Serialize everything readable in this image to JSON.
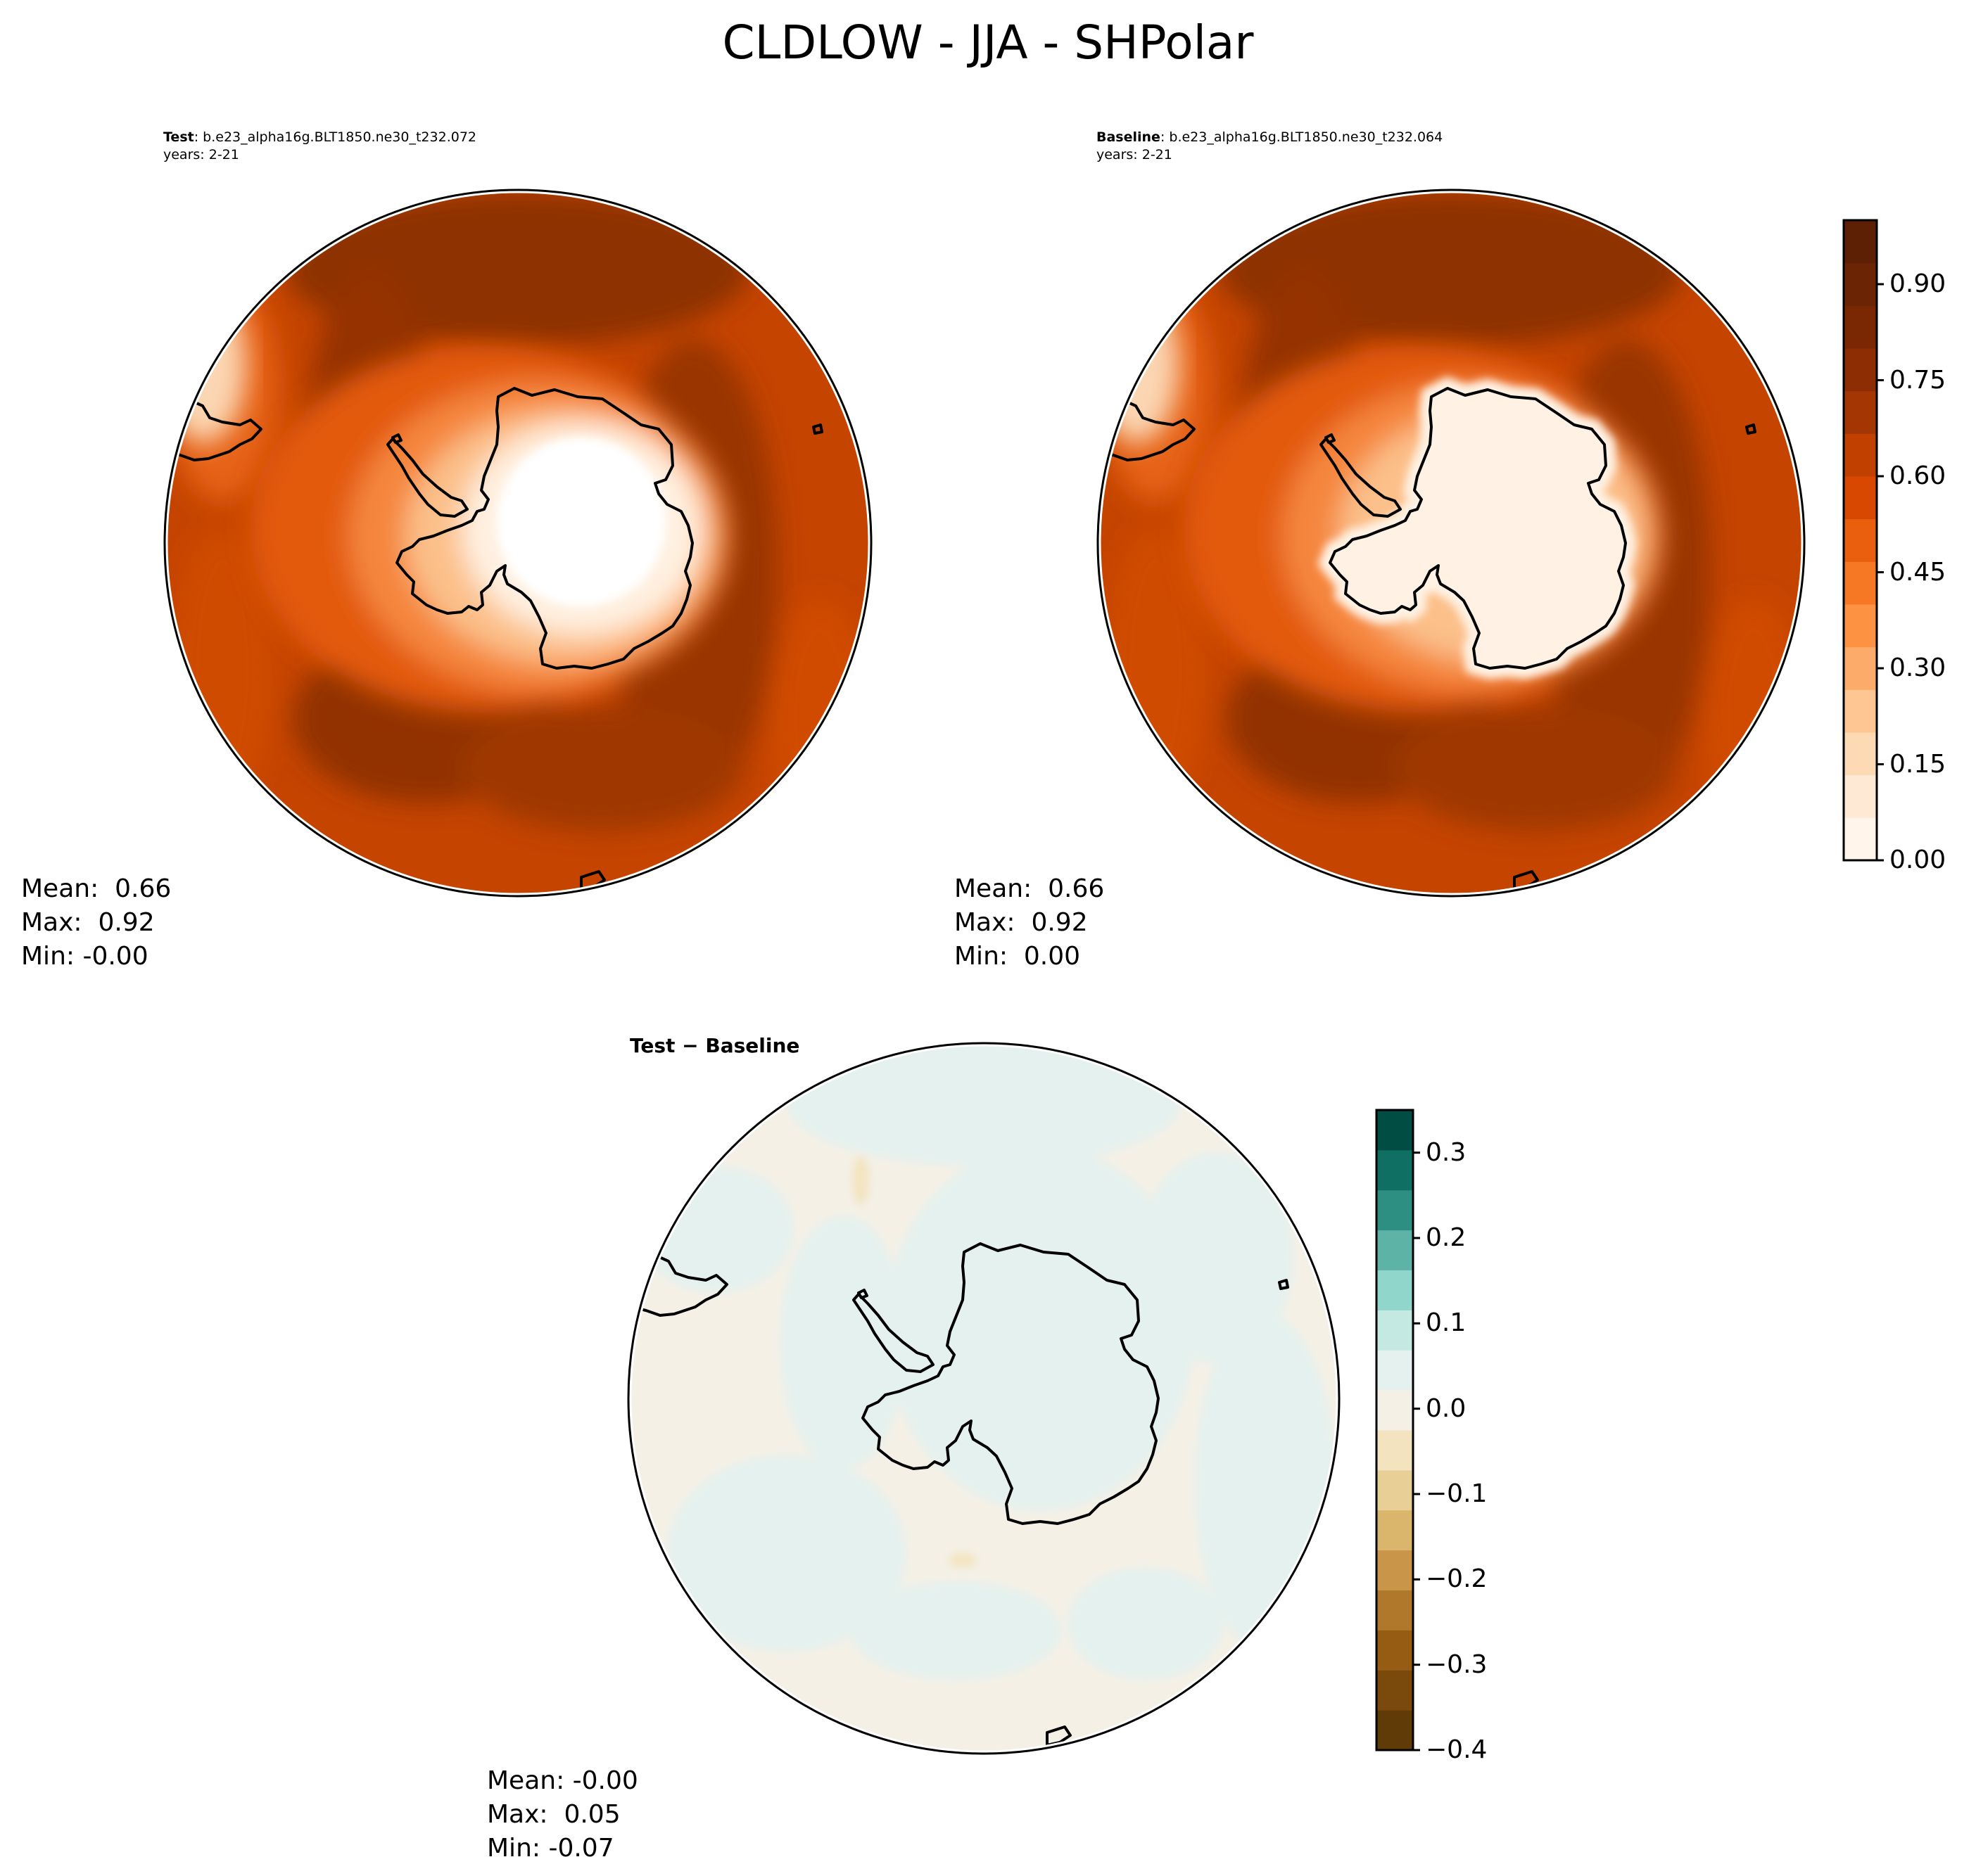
{
  "title": "CLDLOW - JJA - SHPolar",
  "panels": [
    {
      "id": "test",
      "label_bold": "Test",
      "label_rest": ": b.e23_alpha16g.BLT1850.ne30_t232.072",
      "years": "years: 2-21",
      "stats": {
        "mean": "Mean:  0.66",
        "max": "Max:  0.92",
        "min": "Min: -0.00"
      }
    },
    {
      "id": "baseline",
      "label_bold": "Baseline",
      "label_rest": ": b.e23_alpha16g.BLT1850.ne30_t232.064",
      "years": "years: 2-21",
      "stats": {
        "mean": "Mean:  0.66",
        "max": "Max:  0.92",
        "min": "Min:  0.00"
      }
    },
    {
      "id": "diff",
      "label_bold": "Test − Baseline",
      "label_rest": "",
      "years": "",
      "stats": {
        "mean": "Mean: -0.00",
        "max": "Max:  0.05",
        "min": "Min: -0.07"
      }
    }
  ],
  "colorbars": {
    "main": {
      "ticks": [
        "0.00",
        "0.15",
        "0.30",
        "0.45",
        "0.60",
        "0.75",
        "0.90"
      ],
      "tick_values": [
        0.0,
        0.15,
        0.3,
        0.45,
        0.6,
        0.75,
        0.9
      ],
      "range": [
        0.0,
        1.0
      ],
      "colors": [
        "#fff5eb",
        "#fee9d4",
        "#fdd9b4",
        "#fdc692",
        "#fdab6b",
        "#fd9243",
        "#f67824",
        "#e95f0e",
        "#d94801",
        "#c14000",
        "#a33603",
        "#8c2d04",
        "#7a2704",
        "#6b2404",
        "#5e2004"
      ]
    },
    "diff": {
      "ticks": [
        "−0.4",
        "−0.3",
        "−0.2",
        "−0.1",
        "0.0",
        "0.1",
        "0.2",
        "0.3"
      ],
      "tick_values": [
        -0.4,
        -0.3,
        -0.2,
        -0.1,
        0.0,
        0.1,
        0.2,
        0.3
      ],
      "range": [
        -0.4,
        0.35
      ],
      "colors": [
        "#613b07",
        "#7a4a0d",
        "#965c14",
        "#b0782a",
        "#c99548",
        "#dab56c",
        "#e8cf96",
        "#f3e4bf",
        "#f4f0e6",
        "#e5f1ee",
        "#c4e9e2",
        "#90d6ca",
        "#5db3a6",
        "#2d8f82",
        "#0e6f62",
        "#024d43"
      ]
    }
  },
  "chart_data": [
    {
      "type": "heatmap",
      "title": "Test: b.e23_alpha16g.BLT1850.ne30_t232.072",
      "variable": "CLDLOW",
      "season": "JJA",
      "region": "SHPolar",
      "mean": 0.66,
      "max": 0.92,
      "min": -0.0,
      "colorbar_range": [
        0.0,
        1.0
      ]
    },
    {
      "type": "heatmap",
      "title": "Baseline: b.e23_alpha16g.BLT1850.ne30_t232.064",
      "variable": "CLDLOW",
      "season": "JJA",
      "region": "SHPolar",
      "mean": 0.66,
      "max": 0.92,
      "min": 0.0,
      "colorbar_range": [
        0.0,
        1.0
      ]
    },
    {
      "type": "heatmap",
      "title": "Test − Baseline",
      "variable": "CLDLOW",
      "season": "JJA",
      "region": "SHPolar",
      "mean": -0.0,
      "max": 0.05,
      "min": -0.07,
      "colorbar_range": [
        -0.4,
        0.35
      ]
    }
  ]
}
